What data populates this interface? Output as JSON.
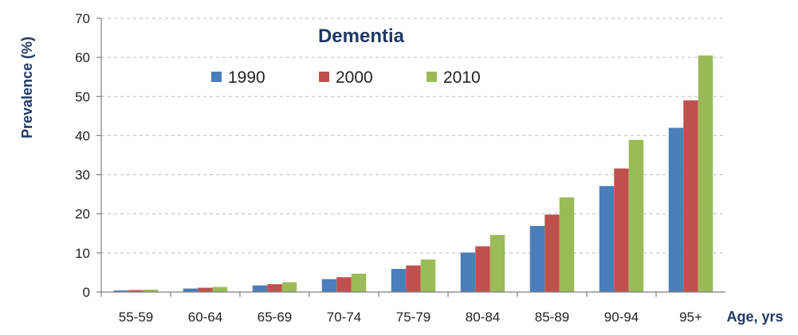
{
  "chart_data": {
    "type": "bar",
    "title": "Dementia",
    "xlabel": "Age, yrs",
    "ylabel": "Prevalence (%)",
    "ylim": [
      0,
      70
    ],
    "yticks": [
      0,
      10,
      20,
      30,
      40,
      50,
      60,
      70
    ],
    "grid": true,
    "legend_position": "top-center",
    "categories": [
      "55-59",
      "60-64",
      "65-69",
      "70-74",
      "75-79",
      "80-84",
      "85-89",
      "90-94",
      "95+"
    ],
    "series": [
      {
        "name": "1990",
        "color": "#4a7ebb",
        "values": [
          0.4,
          0.9,
          1.7,
          3.3,
          5.9,
          10.1,
          16.9,
          27.1,
          42.0
        ]
      },
      {
        "name": "2000",
        "color": "#c0504d",
        "values": [
          0.5,
          1.1,
          2.0,
          3.8,
          6.8,
          11.7,
          19.8,
          31.6,
          49.0
        ]
      },
      {
        "name": "2010",
        "color": "#9bbb59",
        "values": [
          0.6,
          1.3,
          2.5,
          4.7,
          8.3,
          14.6,
          24.2,
          38.9,
          60.5
        ]
      }
    ]
  }
}
